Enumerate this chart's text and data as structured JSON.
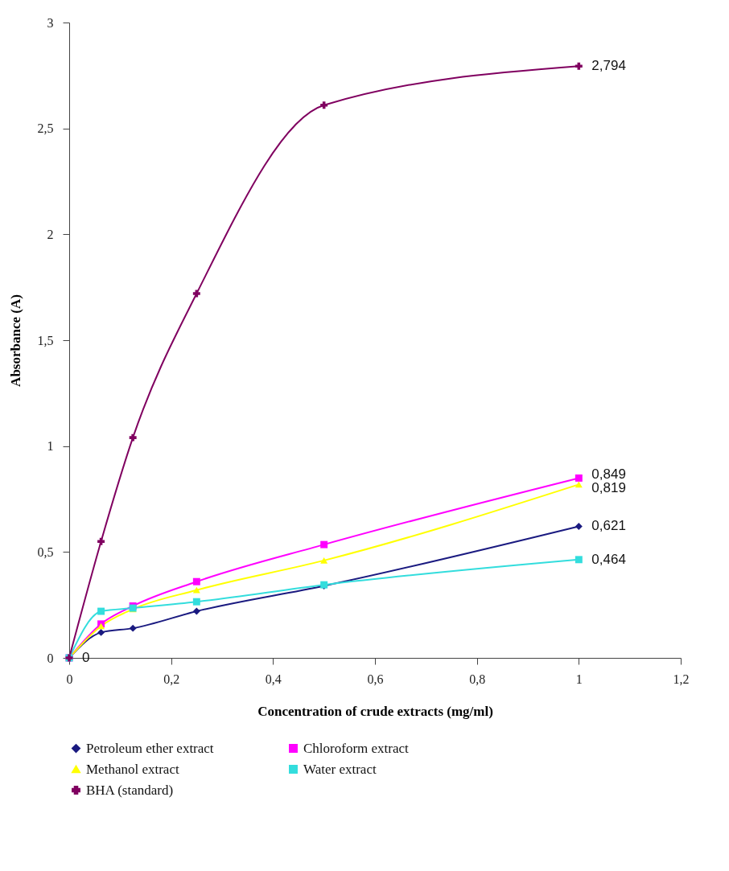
{
  "chart_data": {
    "type": "line",
    "xlabel": "Concentration of crude extracts (mg/ml)",
    "ylabel": "Absorbance (A)",
    "x": [
      0,
      0.0625,
      0.125,
      0.25,
      0.5,
      1
    ],
    "xlim": [
      0,
      1.2
    ],
    "xticks": [
      0,
      {
        "value": 0.2,
        "label": "0,2"
      },
      {
        "value": 0.4,
        "label": "0,4"
      },
      {
        "value": 0.6,
        "label": "0,6"
      },
      {
        "value": 0.8,
        "label": "0,8"
      },
      1,
      {
        "value": 1.2,
        "label": "1,2"
      }
    ],
    "ylim": [
      0,
      3
    ],
    "yticks": [
      0,
      {
        "value": 0.5,
        "label": "0,5"
      },
      1,
      {
        "value": 1.5,
        "label": "1,5"
      },
      2,
      {
        "value": 2.5,
        "label": "2,5"
      },
      3
    ],
    "grid": false,
    "legend": "bottom",
    "series": [
      {
        "name": "Petroleum ether extract",
        "color": "#1a1a80",
        "marker": "diamond",
        "values": [
          0,
          0.12,
          0.14,
          0.22,
          0.34,
          0.621
        ],
        "value_labels": [
          "0",
          null,
          null,
          null,
          null,
          "0,621"
        ]
      },
      {
        "name": "Chloroform extract",
        "color": "#ff00ff",
        "marker": "square",
        "values": [
          0,
          0.16,
          0.245,
          0.36,
          0.535,
          0.849
        ],
        "value_labels": [
          null,
          null,
          null,
          null,
          null,
          "0,849"
        ]
      },
      {
        "name": "Methanol extract",
        "color": "#ffff00",
        "marker": "triangle",
        "values": [
          0,
          0.15,
          0.23,
          0.32,
          0.46,
          0.819
        ],
        "value_labels": [
          null,
          null,
          null,
          null,
          null,
          "0,819"
        ]
      },
      {
        "name": "Water extract",
        "color": "#33dddd",
        "marker": "square",
        "values": [
          0,
          0.22,
          0.235,
          0.265,
          0.345,
          0.464
        ],
        "value_labels": [
          null,
          null,
          null,
          null,
          null,
          "0,464"
        ]
      },
      {
        "name": "BHA (standard)",
        "color": "#800060",
        "marker": "cross",
        "values": [
          0,
          0.55,
          1.04,
          1.72,
          2.61,
          2.794
        ],
        "value_labels": [
          null,
          null,
          null,
          null,
          null,
          "2,794"
        ]
      }
    ]
  }
}
